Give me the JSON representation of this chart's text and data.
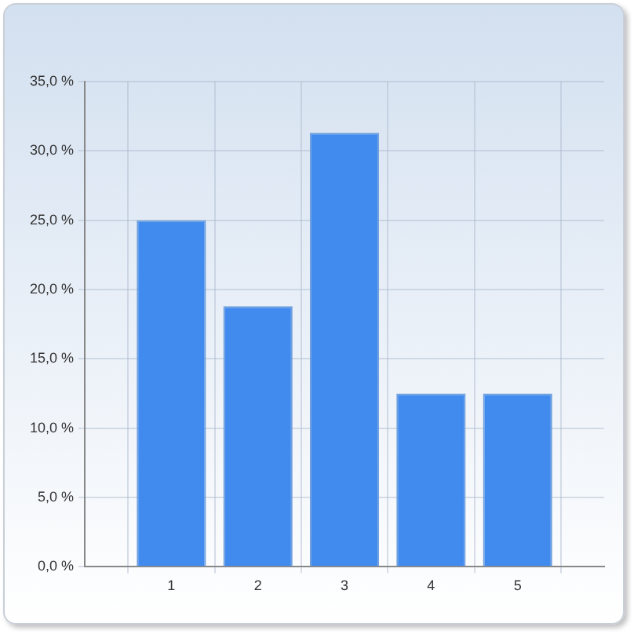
{
  "chart_data": {
    "type": "bar",
    "x": [
      1,
      2,
      3,
      4,
      5
    ],
    "values": [
      25,
      18.8,
      31.3,
      12.5,
      12.5
    ],
    "color": "#428bee",
    "xlim": [
      0,
      6
    ],
    "xticks": [
      1,
      2,
      3,
      4,
      5
    ],
    "ylim": [
      0,
      35
    ],
    "yticks": [
      {
        "value": 0,
        "label": "0,0 %"
      },
      {
        "value": 5,
        "label": "5,0 %"
      },
      {
        "value": 10,
        "label": "10,0 %"
      },
      {
        "value": 15,
        "label": "15,0 %"
      },
      {
        "value": 20,
        "label": "20,0 %"
      },
      {
        "value": 25,
        "label": "25,0 %"
      },
      {
        "value": 30,
        "label": "30,0 %"
      },
      {
        "value": 35,
        "label": "35,0 %"
      }
    ],
    "grid": true,
    "legend": false
  }
}
